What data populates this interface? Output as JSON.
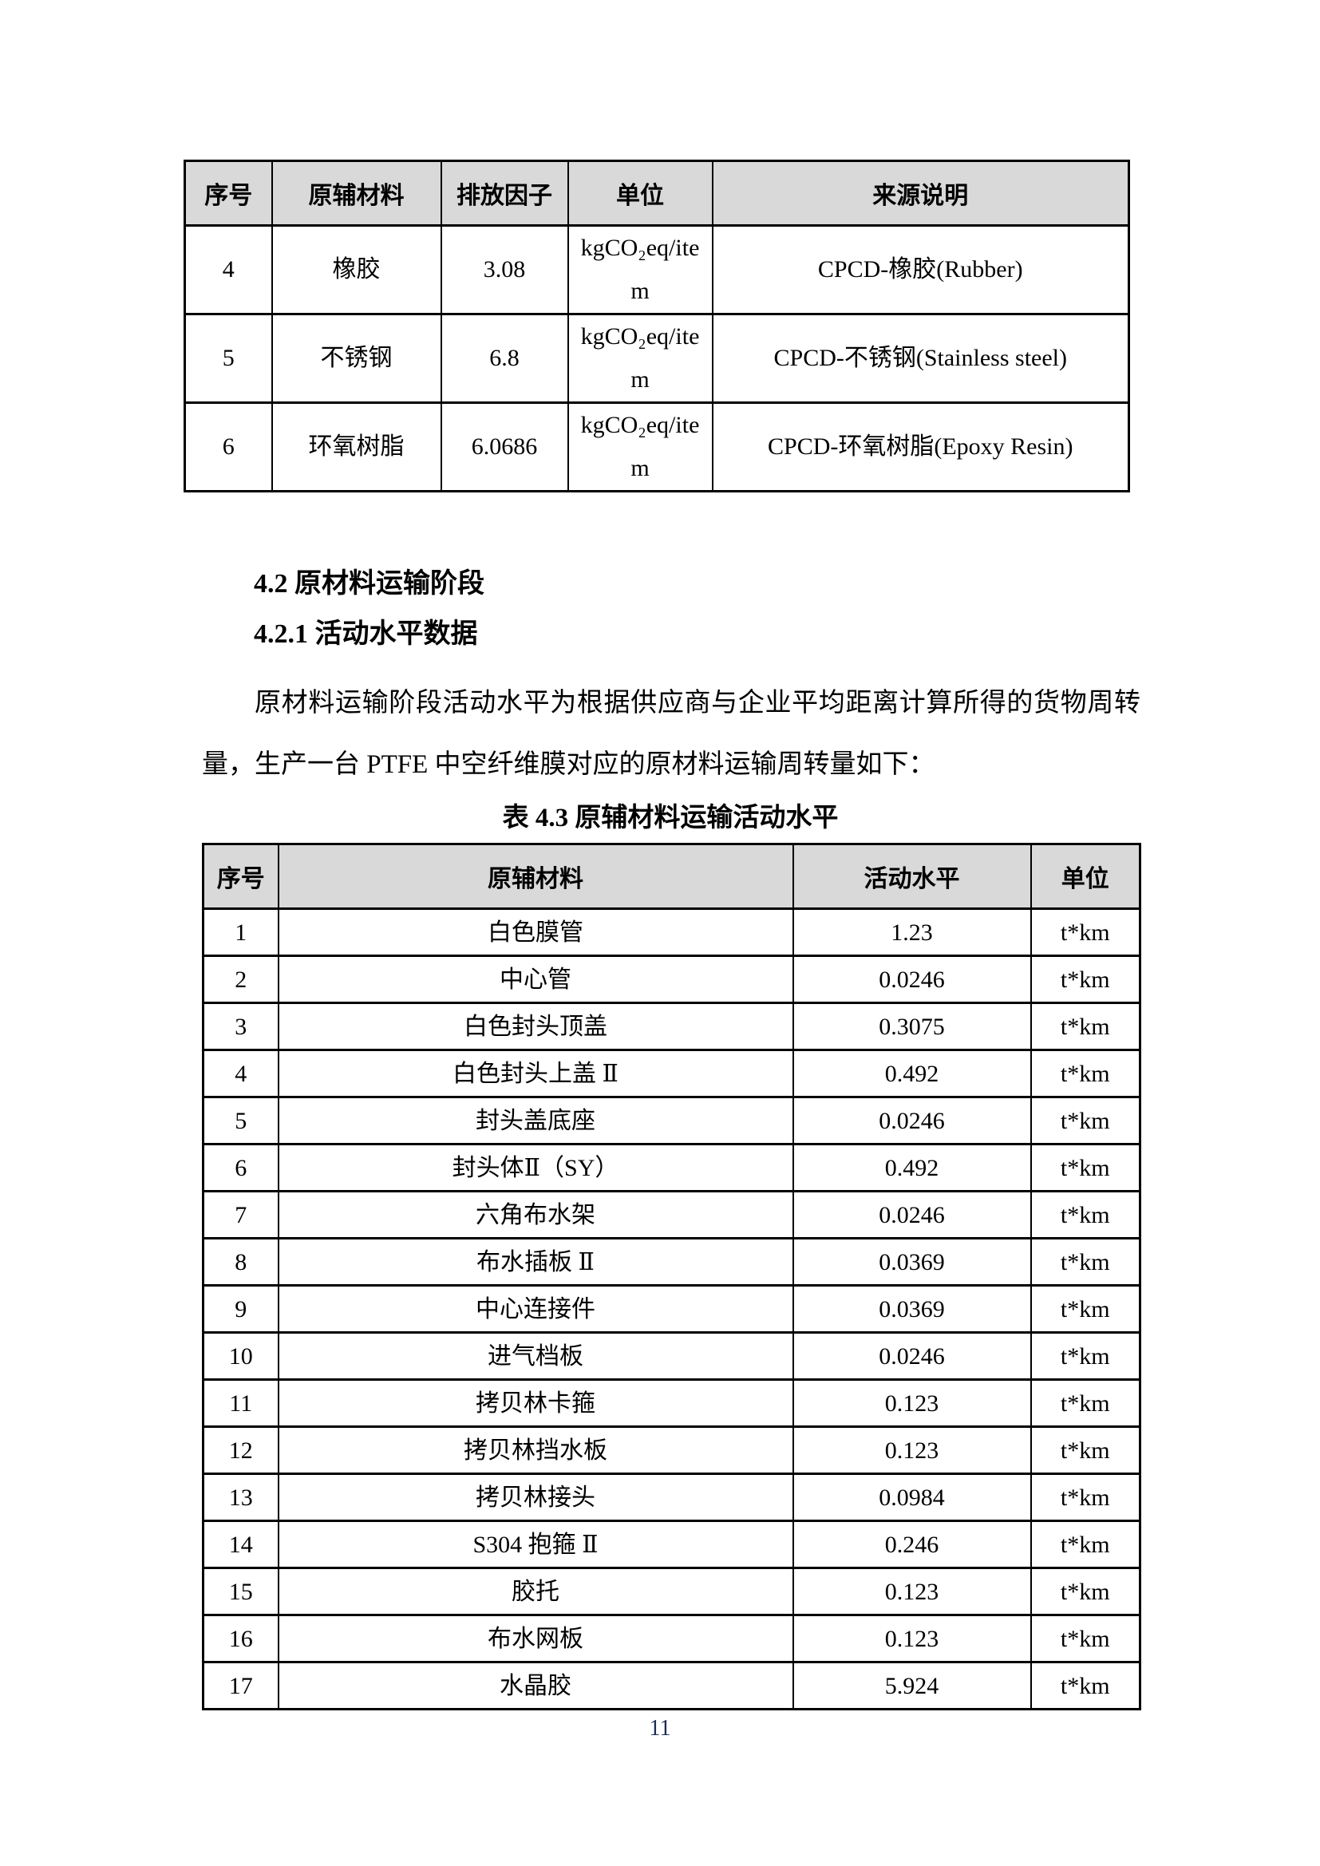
{
  "emission_factor_table": {
    "headers": [
      "序号",
      "原辅材料",
      "排放因子",
      "单位",
      "来源说明"
    ],
    "rows": [
      [
        "4",
        "橡胶",
        "3.08",
        "kgCO₂eq/item",
        "CPCD-橡胶(Rubber)"
      ],
      [
        "5",
        "不锈钢",
        "6.8",
        "kgCO₂eq/item",
        "CPCD-不锈钢(Stainless steel)"
      ],
      [
        "6",
        "环氧树脂",
        "6.0686",
        "kgCO₂eq/item",
        "CPCD-环氧树脂(Epoxy Resin)"
      ]
    ]
  },
  "sections": {
    "heading_42": "4.2 原材料运输阶段",
    "heading_421": "4.2.1 活动水平数据",
    "paragraph": "原材料运输阶段活动水平为根据供应商与企业平均距离计算所得的货物周转量，生产一台 PTFE 中空纤维膜对应的原材料运输周转量如下：",
    "table2_caption": "表 4.3 原辅材料运输活动水平"
  },
  "transport_activity_table": {
    "headers": [
      "序号",
      "原辅材料",
      "活动水平",
      "单位"
    ],
    "rows": [
      [
        "1",
        "白色膜管",
        "1.23",
        "t*km"
      ],
      [
        "2",
        "中心管",
        "0.0246",
        "t*km"
      ],
      [
        "3",
        "白色封头顶盖",
        "0.3075",
        "t*km"
      ],
      [
        "4",
        "白色封头上盖 Ⅱ",
        "0.492",
        "t*km"
      ],
      [
        "5",
        "封头盖底座",
        "0.0246",
        "t*km"
      ],
      [
        "6",
        "封头体Ⅱ（SY）",
        "0.492",
        "t*km"
      ],
      [
        "7",
        "六角布水架",
        "0.0246",
        "t*km"
      ],
      [
        "8",
        "布水插板 Ⅱ",
        "0.0369",
        "t*km"
      ],
      [
        "9",
        "中心连接件",
        "0.0369",
        "t*km"
      ],
      [
        "10",
        "进气档板",
        "0.0246",
        "t*km"
      ],
      [
        "11",
        "拷贝林卡箍",
        "0.123",
        "t*km"
      ],
      [
        "12",
        "拷贝林挡水板",
        "0.123",
        "t*km"
      ],
      [
        "13",
        "拷贝林接头",
        "0.0984",
        "t*km"
      ],
      [
        "14",
        "S304 抱箍 Ⅱ",
        "0.246",
        "t*km"
      ],
      [
        "15",
        "胶托",
        "0.123",
        "t*km"
      ],
      [
        "16",
        "布水网板",
        "0.123",
        "t*km"
      ],
      [
        "17",
        "水晶胶",
        "5.924",
        "t*km"
      ]
    ]
  },
  "footer": {
    "page_number": "11"
  }
}
